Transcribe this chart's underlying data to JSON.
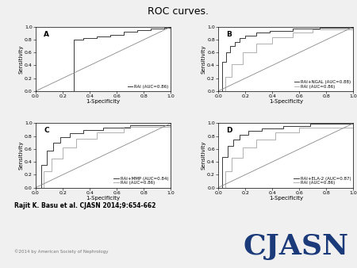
{
  "title": "ROC curves.",
  "title_fontsize": 9,
  "panel_labels": [
    "A",
    "B",
    "C",
    "D"
  ],
  "xlabel": "1-Specificity",
  "ylabel": "Sensitivity",
  "tick_vals": [
    0.0,
    0.2,
    0.4,
    0.6,
    0.8,
    1.0
  ],
  "tick_labels": [
    "0.0",
    "0.2",
    "0.4",
    "0.6",
    "0.8",
    "1.0"
  ],
  "legend_A": [
    "RAI (AUC=0.86)"
  ],
  "legend_B": [
    "RAI+NGAL (AUC=0.88)",
    "RAI (AUC=0.86)"
  ],
  "legend_C": [
    "RAI+MMP (AUC=0.84)",
    "RAI (AUC=0.86)"
  ],
  "legend_D": [
    "RAI+ELA-2 (AUC=0.87)",
    "RAI (AUC=0.86)"
  ],
  "line_color_dark": "#3a3a3a",
  "line_color_light": "#b0b0b0",
  "ref_line_color": "#888888",
  "bg_color": "#f0f0f0",
  "footer_text": "Rajit K. Basu et al. CJASN 2014;9:654-662",
  "copyright_text": "©2014 by American Society of Nephrology",
  "cjasn_text": "CJASN",
  "cjasn_color": "#1a3a7a"
}
